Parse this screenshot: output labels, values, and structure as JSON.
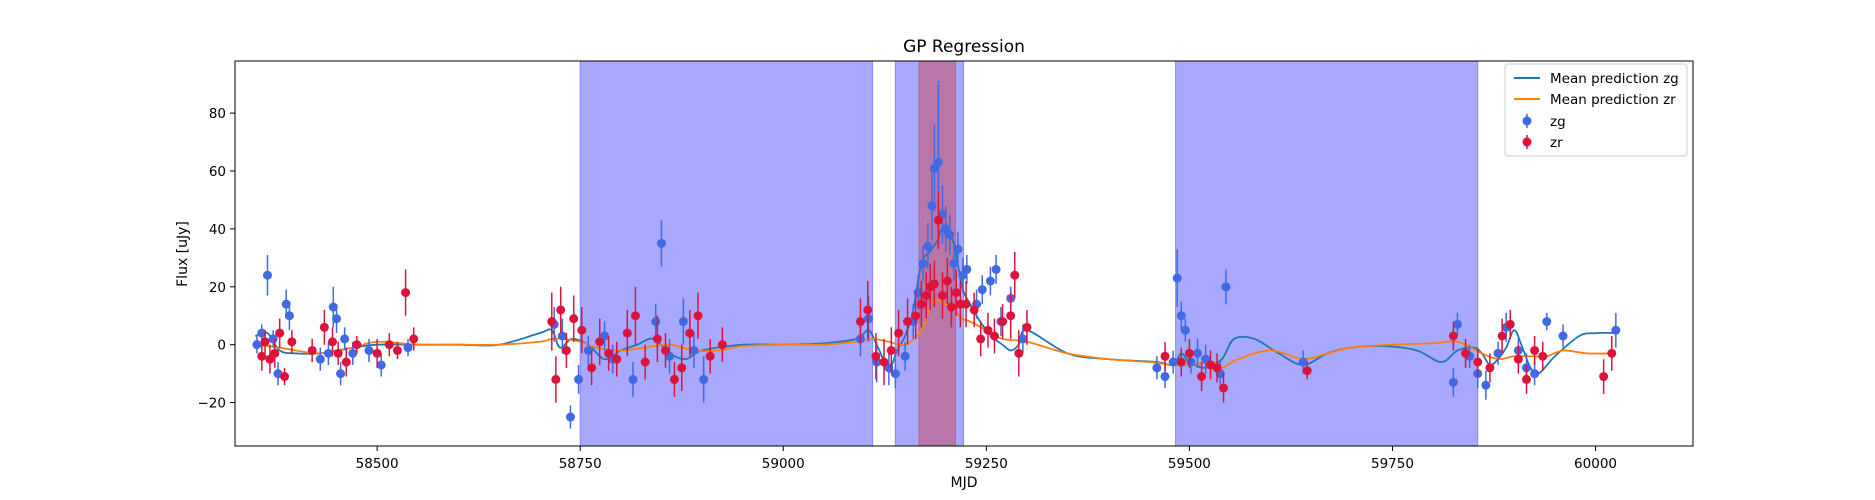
{
  "chart_data": {
    "type": "scatter",
    "title": "GP Regression",
    "xlabel": "MJD",
    "ylabel": "Flux [uJy]",
    "xlim": [
      58325,
      60120
    ],
    "ylim": [
      -35,
      98
    ],
    "xticks": [
      58500,
      58750,
      59000,
      59250,
      59500,
      59750,
      60000
    ],
    "yticks": [
      -20,
      0,
      20,
      40,
      60,
      80
    ],
    "grid": false,
    "legend_position": "top-right",
    "shaded_regions": [
      {
        "x0": 58750,
        "x1": 59110,
        "color": "#7f7fff"
      },
      {
        "x0": 59138,
        "x1": 59222,
        "color": "#7f7fff"
      },
      {
        "x0": 59167,
        "x1": 59212,
        "color": "#c0607f"
      },
      {
        "x0": 59483,
        "x1": 59855,
        "color": "#7f7fff"
      }
    ],
    "series": [
      {
        "name": "Mean prediction zg",
        "kind": "line",
        "color": "#1f77b4",
        "x": [
          58350,
          58365,
          58380,
          58400,
          58430,
          58470,
          58500,
          58550,
          58600,
          58650,
          58700,
          58715,
          58725,
          58740,
          58760,
          58780,
          58800,
          58820,
          58840,
          58860,
          58880,
          58900,
          58950,
          59000,
          59050,
          59090,
          59105,
          59115,
          59130,
          59140,
          59150,
          59160,
          59170,
          59180,
          59190,
          59195,
          59200,
          59210,
          59220,
          59230,
          59240,
          59250,
          59260,
          59270,
          59280,
          59290,
          59300,
          59350,
          59400,
          59460,
          59480,
          59490,
          59500,
          59520,
          59540,
          59555,
          59580,
          59610,
          59640,
          59670,
          59700,
          59740,
          59780,
          59810,
          59830,
          59850,
          59860,
          59870,
          59880,
          59890,
          59900,
          59910,
          59920,
          59930,
          59950,
          59980,
          60000,
          60025
        ],
        "y": [
          3,
          4,
          -2,
          -3,
          -3,
          -1,
          0,
          0,
          0,
          0,
          4,
          5,
          -1,
          2,
          0,
          -5,
          -2,
          0,
          2,
          -3,
          -5,
          -2,
          0,
          0,
          0.5,
          2,
          5,
          0,
          -8,
          -2,
          3,
          12,
          28,
          32,
          36,
          40,
          38,
          35,
          20,
          14,
          9,
          5,
          2,
          0,
          -2,
          0,
          5,
          -3,
          -5,
          -6,
          -7,
          -3,
          -6,
          -8,
          -5,
          2,
          2,
          -3,
          -7,
          -3,
          -1,
          -0.5,
          -2,
          -6,
          -2,
          -1,
          -3,
          -7,
          -5,
          -1,
          5,
          -1,
          -8,
          -10,
          -4,
          3,
          4,
          4
        ]
      },
      {
        "name": "Mean prediction zr",
        "kind": "line",
        "color": "#ff7f0e",
        "x": [
          58350,
          58380,
          58400,
          58430,
          58470,
          58500,
          58550,
          58600,
          58650,
          58700,
          58715,
          58730,
          58750,
          58770,
          58800,
          58830,
          58860,
          58890,
          58920,
          58950,
          59000,
          59050,
          59090,
          59110,
          59130,
          59150,
          59170,
          59185,
          59200,
          59210,
          59220,
          59230,
          59250,
          59270,
          59300,
          59350,
          59400,
          59450,
          59480,
          59500,
          59530,
          59540,
          59560,
          59600,
          59640,
          59670,
          59700,
          59750,
          59800,
          59830,
          59860,
          59880,
          59900,
          59920,
          59940,
          59960,
          59990,
          60025
        ],
        "y": [
          0,
          -1,
          -2,
          -3,
          -1,
          1,
          0,
          0,
          0,
          1,
          2,
          2,
          1,
          -1,
          -2,
          -1,
          0,
          -2,
          -2,
          -0.5,
          0,
          0,
          1,
          2,
          1,
          0,
          5,
          15,
          14,
          12,
          9,
          8,
          5,
          2,
          1,
          -3,
          -5,
          -6,
          -7,
          -7,
          -6,
          -8,
          -5,
          -2,
          -5,
          -3,
          -1,
          0,
          0.5,
          1,
          -3,
          -5,
          -4,
          -4,
          -4,
          -2,
          -3,
          -3
        ]
      },
      {
        "name": "zg",
        "kind": "errorbar",
        "color": "#4169e1",
        "points": [
          [
            58352,
            0,
            3
          ],
          [
            58358,
            4,
            3
          ],
          [
            58365,
            24,
            7
          ],
          [
            58372,
            2,
            3
          ],
          [
            58378,
            -10,
            4
          ],
          [
            58388,
            14,
            5
          ],
          [
            58392,
            10,
            5
          ],
          [
            58430,
            -5,
            4
          ],
          [
            58440,
            -3,
            4
          ],
          [
            58446,
            13,
            7
          ],
          [
            58450,
            9,
            5
          ],
          [
            58455,
            -10,
            4
          ],
          [
            58460,
            2,
            4
          ],
          [
            58470,
            -3,
            4
          ],
          [
            58490,
            -2,
            4
          ],
          [
            58505,
            -7,
            4
          ],
          [
            58538,
            -1,
            3
          ],
          [
            58718,
            7,
            6
          ],
          [
            58728,
            3,
            6
          ],
          [
            58738,
            -25,
            4
          ],
          [
            58748,
            -12,
            5
          ],
          [
            58760,
            -2,
            5
          ],
          [
            58780,
            3,
            5
          ],
          [
            58790,
            -5,
            5
          ],
          [
            58815,
            -12,
            6
          ],
          [
            58843,
            8,
            6
          ],
          [
            58850,
            35,
            8
          ],
          [
            58860,
            -4,
            6
          ],
          [
            58877,
            8,
            8
          ],
          [
            58890,
            -2,
            6
          ],
          [
            58902,
            -12,
            8
          ],
          [
            59095,
            2,
            6
          ],
          [
            59105,
            9,
            8
          ],
          [
            59115,
            -6,
            7
          ],
          [
            59130,
            -8,
            6
          ],
          [
            59138,
            -10,
            5
          ],
          [
            59150,
            -4,
            5
          ],
          [
            59160,
            8,
            6
          ],
          [
            59166,
            18,
            6
          ],
          [
            59172,
            28,
            6
          ],
          [
            59178,
            34,
            8
          ],
          [
            59183,
            48,
            12
          ],
          [
            59186,
            61,
            15
          ],
          [
            59191,
            63,
            28
          ],
          [
            59196,
            45,
            10
          ],
          [
            59200,
            40,
            8
          ],
          [
            59205,
            38,
            7
          ],
          [
            59210,
            28,
            6
          ],
          [
            59215,
            33,
            6
          ],
          [
            59221,
            24,
            6
          ],
          [
            59226,
            26,
            5
          ],
          [
            59238,
            14,
            5
          ],
          [
            59245,
            19,
            5
          ],
          [
            59255,
            22,
            5
          ],
          [
            59262,
            26,
            5
          ],
          [
            59268,
            8,
            5
          ],
          [
            59280,
            16,
            4
          ],
          [
            59295,
            2,
            5
          ],
          [
            59460,
            -8,
            4
          ],
          [
            59470,
            -11,
            4
          ],
          [
            59480,
            -6,
            4
          ],
          [
            59485,
            23,
            10
          ],
          [
            59490,
            10,
            5
          ],
          [
            59495,
            5,
            4
          ],
          [
            59502,
            -6,
            4
          ],
          [
            59510,
            -3,
            5
          ],
          [
            59520,
            -5,
            5
          ],
          [
            59538,
            -10,
            4
          ],
          [
            59545,
            20,
            6
          ],
          [
            59640,
            -6,
            4
          ],
          [
            59825,
            -13,
            5
          ],
          [
            59830,
            7,
            4
          ],
          [
            59845,
            -4,
            4
          ],
          [
            59855,
            -10,
            5
          ],
          [
            59865,
            -14,
            5
          ],
          [
            59880,
            -3,
            4
          ],
          [
            59890,
            6,
            5
          ],
          [
            59905,
            -2,
            4
          ],
          [
            59915,
            -8,
            5
          ],
          [
            59925,
            -10,
            4
          ],
          [
            59940,
            8,
            3
          ],
          [
            59960,
            3,
            4
          ],
          [
            60025,
            5,
            6
          ]
        ]
      },
      {
        "name": "zr",
        "kind": "errorbar",
        "color": "#dc143c",
        "points": [
          [
            58358,
            -4,
            5
          ],
          [
            58362,
            1,
            4
          ],
          [
            58368,
            -5,
            5
          ],
          [
            58374,
            -3,
            5
          ],
          [
            58380,
            4,
            5
          ],
          [
            58386,
            -11,
            3
          ],
          [
            58395,
            1,
            4
          ],
          [
            58420,
            -2,
            4
          ],
          [
            58435,
            6,
            6
          ],
          [
            58445,
            1,
            5
          ],
          [
            58452,
            -3,
            4
          ],
          [
            58462,
            -6,
            5
          ],
          [
            58475,
            0,
            3
          ],
          [
            58500,
            -3,
            5
          ],
          [
            58515,
            0,
            4
          ],
          [
            58525,
            -2,
            3
          ],
          [
            58535,
            18,
            8
          ],
          [
            58545,
            2,
            4
          ],
          [
            58715,
            8,
            10
          ],
          [
            58720,
            -12,
            8
          ],
          [
            58726,
            12,
            8
          ],
          [
            58733,
            -2,
            6
          ],
          [
            58742,
            9,
            8
          ],
          [
            58752,
            5,
            8
          ],
          [
            58764,
            -8,
            6
          ],
          [
            58774,
            1,
            8
          ],
          [
            58785,
            -3,
            6
          ],
          [
            58795,
            -5,
            6
          ],
          [
            58808,
            4,
            8
          ],
          [
            58818,
            10,
            10
          ],
          [
            58830,
            -6,
            6
          ],
          [
            58845,
            2,
            8
          ],
          [
            58855,
            -2,
            6
          ],
          [
            58866,
            -12,
            6
          ],
          [
            58875,
            -8,
            8
          ],
          [
            58885,
            4,
            8
          ],
          [
            58895,
            10,
            8
          ],
          [
            58910,
            -4,
            6
          ],
          [
            58925,
            0,
            6
          ],
          [
            59095,
            8,
            8
          ],
          [
            59104,
            12,
            10
          ],
          [
            59114,
            -4,
            8
          ],
          [
            59124,
            -6,
            8
          ],
          [
            59133,
            -2,
            8
          ],
          [
            59142,
            4,
            8
          ],
          [
            59153,
            8,
            8
          ],
          [
            59163,
            10,
            8
          ],
          [
            59170,
            14,
            8
          ],
          [
            59176,
            17,
            8
          ],
          [
            59181,
            20,
            8
          ],
          [
            59186,
            21,
            8
          ],
          [
            59191,
            43,
            10
          ],
          [
            59196,
            17,
            8
          ],
          [
            59202,
            22,
            8
          ],
          [
            59207,
            13,
            7
          ],
          [
            59213,
            18,
            8
          ],
          [
            59218,
            14,
            8
          ],
          [
            59225,
            14,
            8
          ],
          [
            59235,
            12,
            6
          ],
          [
            59243,
            2,
            6
          ],
          [
            59252,
            5,
            6
          ],
          [
            59260,
            3,
            6
          ],
          [
            59270,
            8,
            6
          ],
          [
            59280,
            10,
            8
          ],
          [
            59285,
            24,
            8
          ],
          [
            59290,
            -3,
            8
          ],
          [
            59300,
            6,
            6
          ],
          [
            59470,
            -4,
            5
          ],
          [
            59490,
            -6,
            5
          ],
          [
            59500,
            -3,
            5
          ],
          [
            59515,
            -11,
            5
          ],
          [
            59526,
            -7,
            5
          ],
          [
            59534,
            -8,
            5
          ],
          [
            59542,
            -15,
            5
          ],
          [
            59645,
            -9,
            3
          ],
          [
            59825,
            3,
            5
          ],
          [
            59840,
            -3,
            5
          ],
          [
            59855,
            -6,
            5
          ],
          [
            59870,
            -8,
            5
          ],
          [
            59885,
            3,
            6
          ],
          [
            59895,
            7,
            5
          ],
          [
            59905,
            -5,
            5
          ],
          [
            59915,
            -12,
            5
          ],
          [
            59925,
            -2,
            5
          ],
          [
            59935,
            -4,
            5
          ],
          [
            60010,
            -11,
            6
          ],
          [
            60020,
            -3,
            6
          ]
        ]
      }
    ]
  }
}
